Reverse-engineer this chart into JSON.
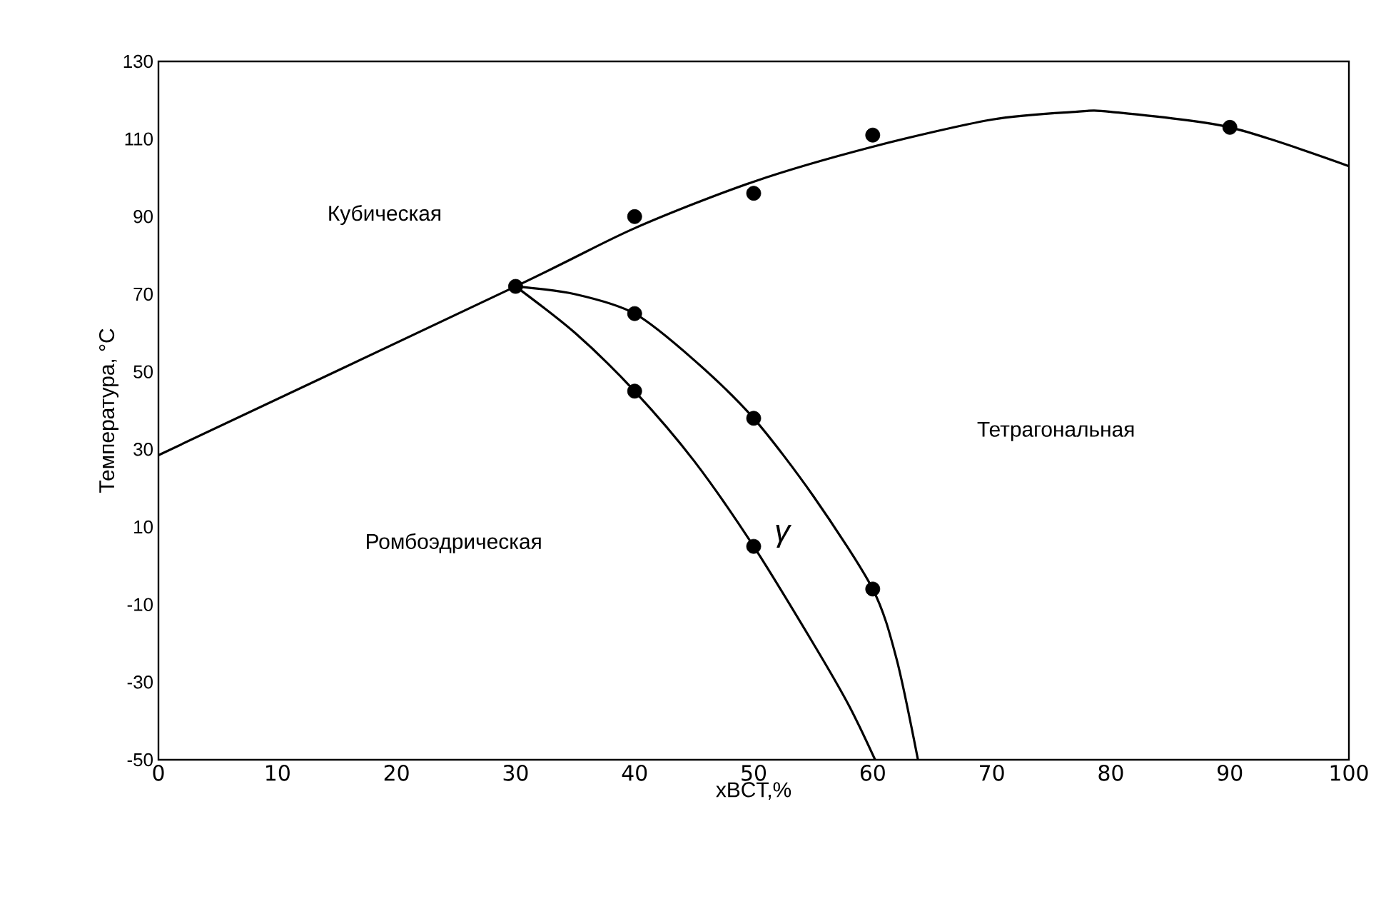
{
  "chart_data": {
    "type": "line",
    "xlabel": "xBCT,%",
    "ylabel": "Температура, °C",
    "xlim": [
      0,
      100
    ],
    "ylim": [
      -50,
      130
    ],
    "xticks": [
      0,
      10,
      20,
      30,
      40,
      50,
      60,
      70,
      80,
      90,
      100
    ],
    "yticks": [
      -50,
      -30,
      -10,
      10,
      30,
      50,
      70,
      90,
      110,
      130
    ],
    "grid": false,
    "series": [
      {
        "type": "scatter",
        "marker": "circle",
        "color": "#000000",
        "x": [
          30,
          40,
          50,
          60,
          90,
          40,
          50,
          60,
          40,
          50
        ],
        "values": [
          72,
          90,
          96,
          111,
          113,
          65,
          38,
          -6,
          45,
          5
        ]
      },
      {
        "marker": "none",
        "color": "#000000",
        "x": [
          0,
          30,
          40,
          50,
          60,
          70,
          77,
          80,
          90,
          100
        ],
        "values": [
          28.5,
          72,
          87,
          99,
          108,
          115,
          117,
          117,
          113,
          103
        ]
      },
      {
        "marker": "none",
        "color": "#000000",
        "x": [
          30,
          35,
          40,
          45,
          50,
          55,
          60,
          62,
          63.8
        ],
        "values": [
          72,
          70,
          65,
          53,
          38,
          18,
          -6,
          -24,
          -50
        ]
      },
      {
        "marker": "none",
        "color": "#000000",
        "x": [
          30,
          35,
          40,
          45,
          50,
          55,
          58,
          60.2
        ],
        "values": [
          72,
          60,
          45,
          27,
          5,
          -20,
          -36,
          -50
        ]
      }
    ],
    "annotations": [
      "Кубическая",
      "Тетрагональная",
      "Ромбоэдрическая",
      "γ"
    ]
  }
}
